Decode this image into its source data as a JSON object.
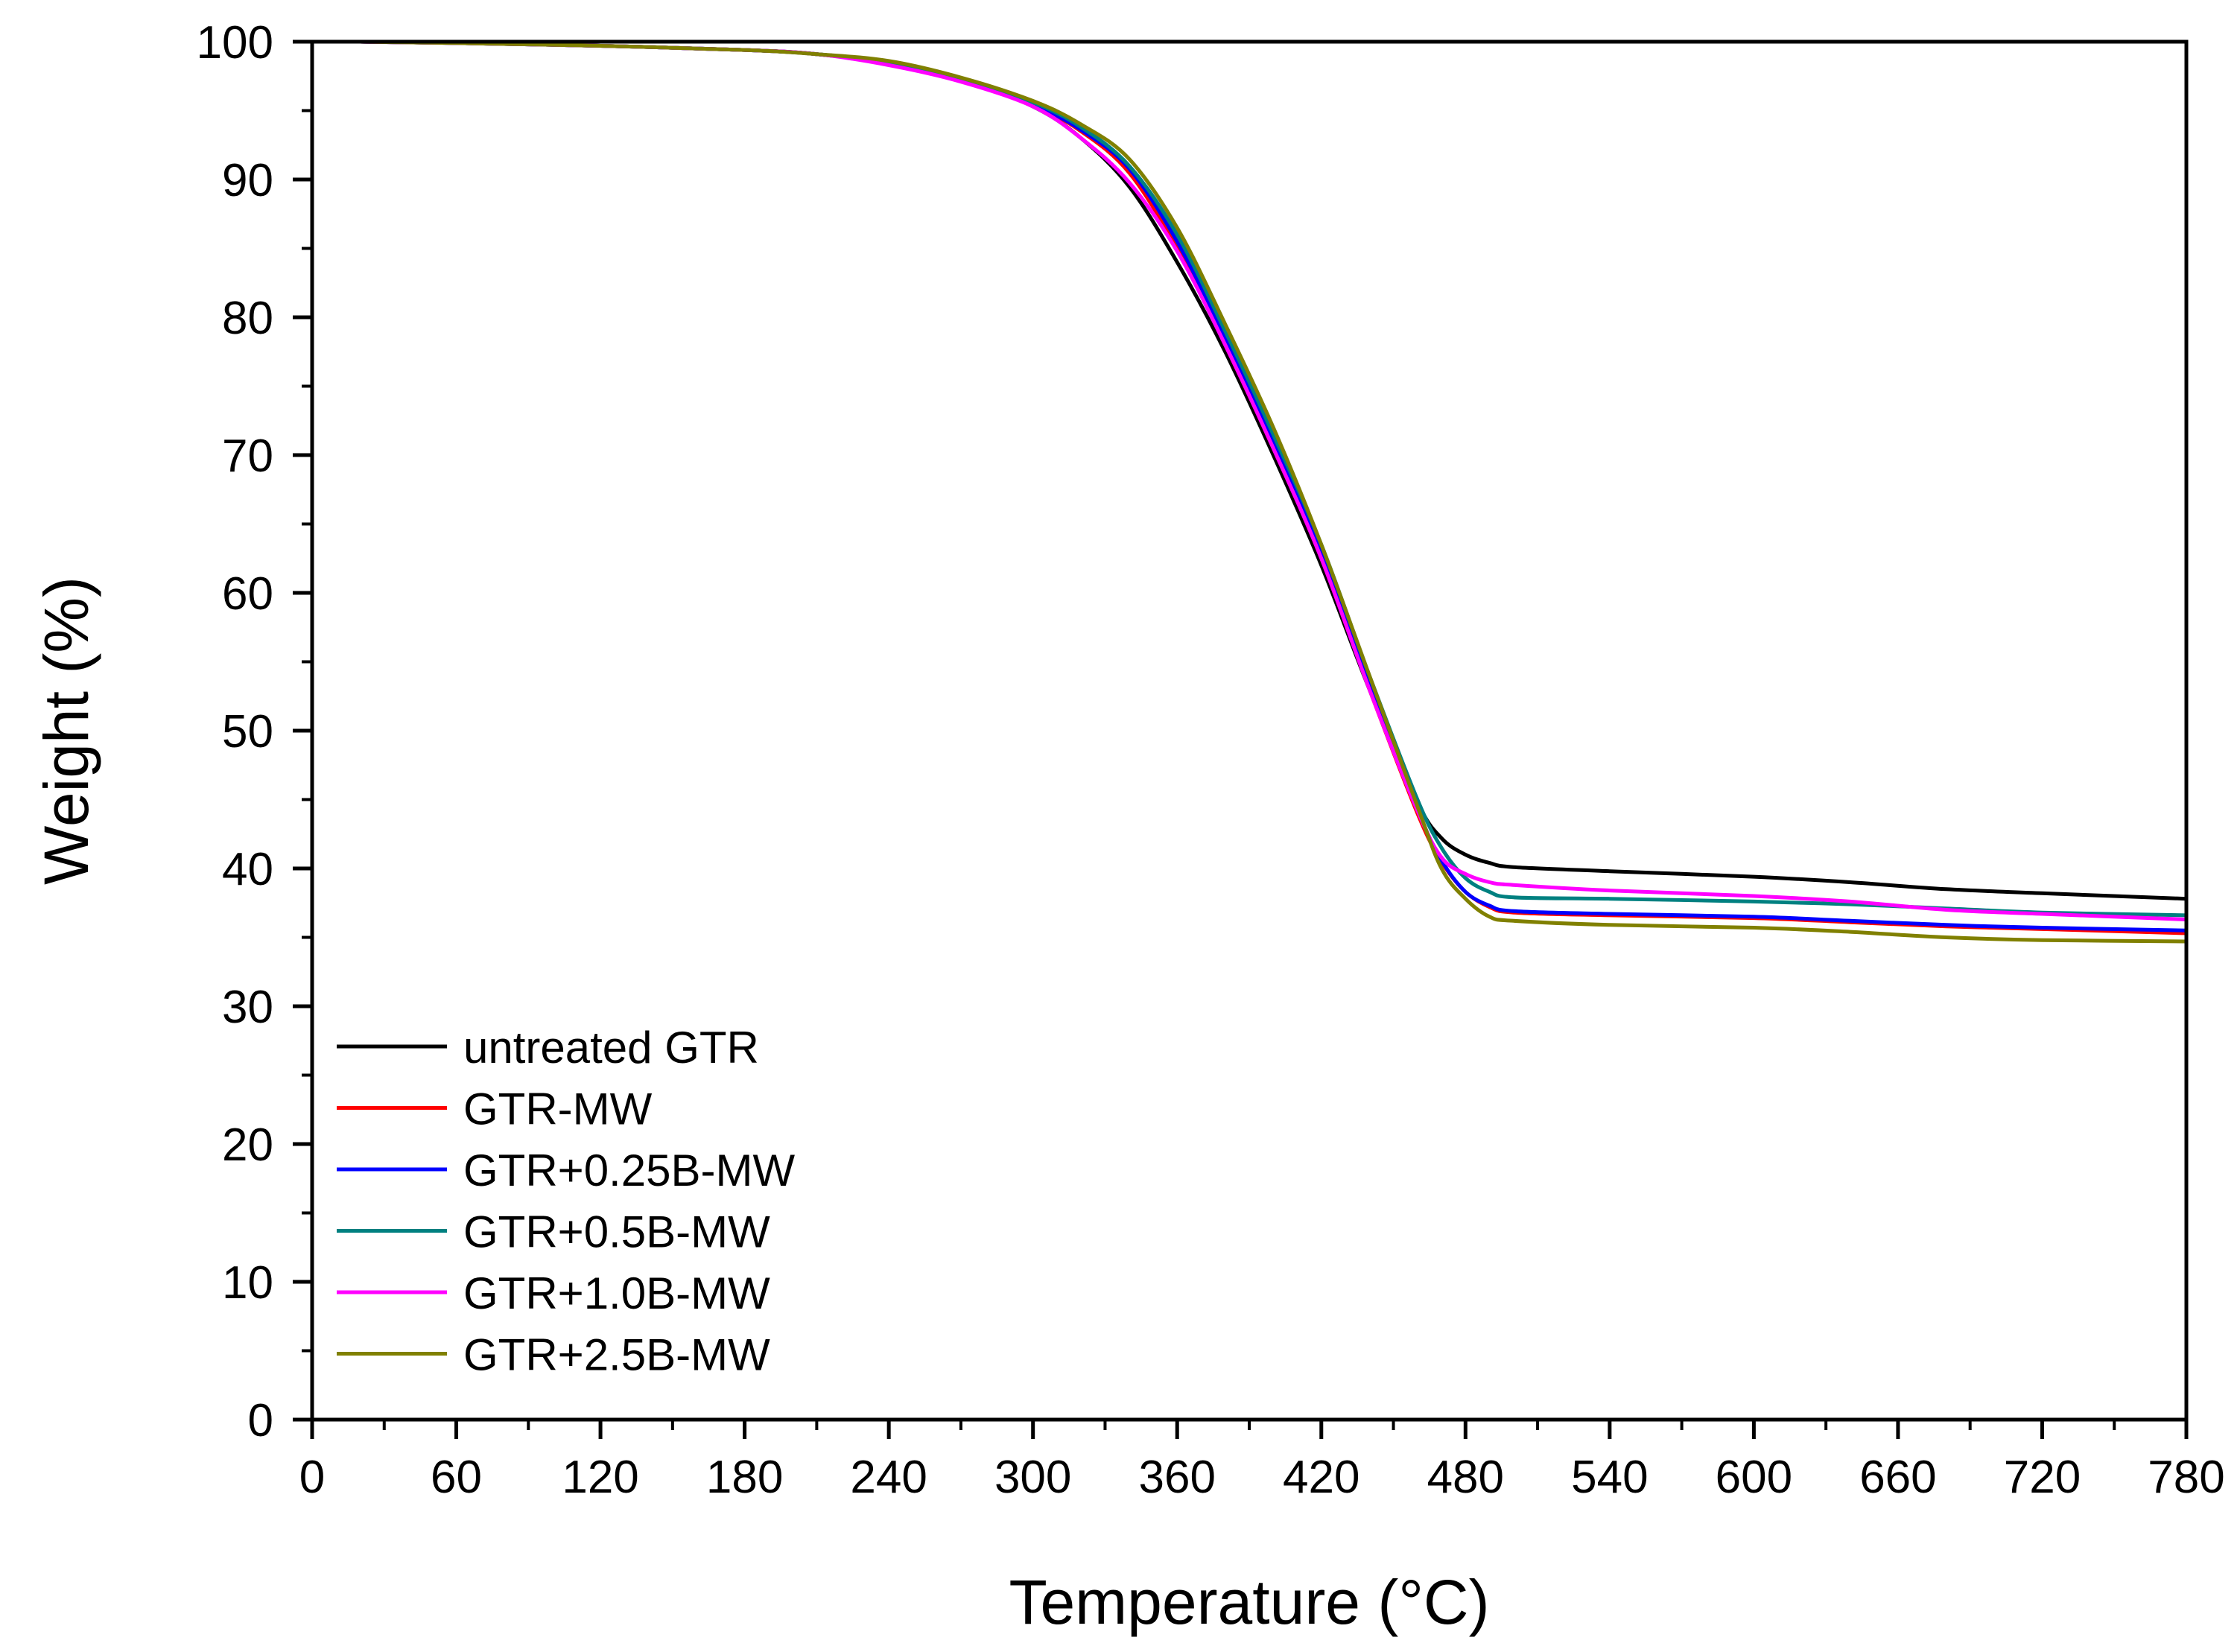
{
  "chart_data": {
    "type": "line",
    "title": "",
    "xlabel": "Temperature (°C)",
    "ylabel": "Weight (%)",
    "xlim": [
      0,
      780
    ],
    "ylim": [
      0,
      100
    ],
    "x_ticks": [
      0,
      60,
      120,
      180,
      240,
      300,
      360,
      420,
      480,
      540,
      600,
      660,
      720,
      780
    ],
    "x_tick_labels": [
      "0",
      "60",
      "120",
      "180",
      "240",
      "300",
      "360",
      "420",
      "480",
      "540",
      "600",
      "660",
      "720",
      "780"
    ],
    "y_ticks": [
      0,
      10,
      20,
      30,
      40,
      50,
      60,
      70,
      80,
      90,
      100
    ],
    "y_tick_labels": [
      "0",
      "10",
      "20",
      "30",
      "40",
      "50",
      "60",
      "70",
      "80",
      "90",
      "100"
    ],
    "grid": false,
    "legend_position": "bottom-left",
    "series": [
      {
        "name": "untreated GTR",
        "color": "#000000",
        "x": [
          20,
          60,
          120,
          180,
          210,
          240,
          270,
          300,
          320,
          340,
          360,
          380,
          400,
          420,
          440,
          460,
          470,
          480,
          490,
          500,
          540,
          600,
          640,
          680,
          720,
          780
        ],
        "y": [
          100,
          99.9,
          99.7,
          99.4,
          99.1,
          98.5,
          97.3,
          95.3,
          93.0,
          89.5,
          84.0,
          77.5,
          70.0,
          62.0,
          53.0,
          44.8,
          42.2,
          41.0,
          40.4,
          40.1,
          39.8,
          39.4,
          39.0,
          38.5,
          38.2,
          37.8
        ]
      },
      {
        "name": "GTR-MW",
        "color": "#ff0000",
        "x": [
          20,
          60,
          120,
          180,
          210,
          240,
          270,
          300,
          320,
          340,
          360,
          380,
          400,
          420,
          440,
          460,
          470,
          480,
          490,
          500,
          540,
          600,
          640,
          680,
          720,
          780
        ],
        "y": [
          100,
          99.9,
          99.7,
          99.4,
          99.1,
          98.4,
          97.2,
          95.4,
          93.5,
          90.5,
          85.0,
          78.0,
          70.5,
          62.5,
          53.0,
          44.0,
          40.5,
          38.3,
          37.2,
          36.8,
          36.6,
          36.4,
          36.1,
          35.8,
          35.6,
          35.3
        ]
      },
      {
        "name": "GTR+0.25B-MW",
        "color": "#0000ff",
        "x": [
          20,
          60,
          120,
          180,
          210,
          240,
          270,
          300,
          320,
          340,
          360,
          380,
          400,
          420,
          440,
          460,
          470,
          480,
          490,
          500,
          540,
          600,
          640,
          680,
          720,
          780
        ],
        "y": [
          100,
          99.9,
          99.7,
          99.4,
          99.1,
          98.4,
          97.2,
          95.4,
          93.6,
          90.8,
          85.5,
          78.5,
          71.0,
          63.0,
          53.5,
          44.3,
          40.6,
          38.3,
          37.3,
          36.9,
          36.7,
          36.5,
          36.2,
          35.9,
          35.7,
          35.5
        ]
      },
      {
        "name": "GTR+0.5B-MW",
        "color": "#008080",
        "x": [
          20,
          60,
          120,
          180,
          210,
          240,
          270,
          300,
          320,
          340,
          360,
          380,
          400,
          420,
          440,
          460,
          470,
          480,
          490,
          500,
          540,
          600,
          640,
          680,
          720,
          780
        ],
        "y": [
          100,
          99.9,
          99.7,
          99.4,
          99.1,
          98.5,
          97.3,
          95.6,
          93.8,
          91.0,
          86.0,
          79.0,
          71.5,
          63.5,
          54.0,
          45.0,
          41.5,
          39.3,
          38.3,
          37.9,
          37.8,
          37.6,
          37.4,
          37.1,
          36.8,
          36.6
        ]
      },
      {
        "name": "GTR+1.0B-MW",
        "color": "#ff00ff",
        "x": [
          20,
          60,
          120,
          180,
          210,
          240,
          270,
          300,
          320,
          340,
          360,
          380,
          400,
          420,
          440,
          460,
          470,
          480,
          490,
          500,
          540,
          600,
          640,
          680,
          720,
          780
        ],
        "y": [
          100,
          99.9,
          99.7,
          99.4,
          99.1,
          98.3,
          97.1,
          95.3,
          93.0,
          89.8,
          84.8,
          78.0,
          70.5,
          62.5,
          53.0,
          44.2,
          40.8,
          39.6,
          39.0,
          38.8,
          38.4,
          38.0,
          37.6,
          37.0,
          36.7,
          36.3
        ]
      },
      {
        "name": "GTR+2.5B-MW",
        "color": "#808000",
        "x": [
          20,
          60,
          120,
          180,
          210,
          240,
          270,
          300,
          320,
          340,
          360,
          380,
          400,
          420,
          440,
          460,
          470,
          480,
          490,
          500,
          540,
          600,
          640,
          680,
          720,
          780
        ],
        "y": [
          100,
          99.9,
          99.7,
          99.4,
          99.1,
          98.6,
          97.4,
          95.7,
          94.0,
          91.5,
          86.5,
          79.5,
          72.0,
          63.5,
          54.0,
          44.5,
          40.0,
          37.8,
          36.5,
          36.2,
          35.9,
          35.7,
          35.4,
          35.0,
          34.8,
          34.7
        ]
      }
    ]
  }
}
